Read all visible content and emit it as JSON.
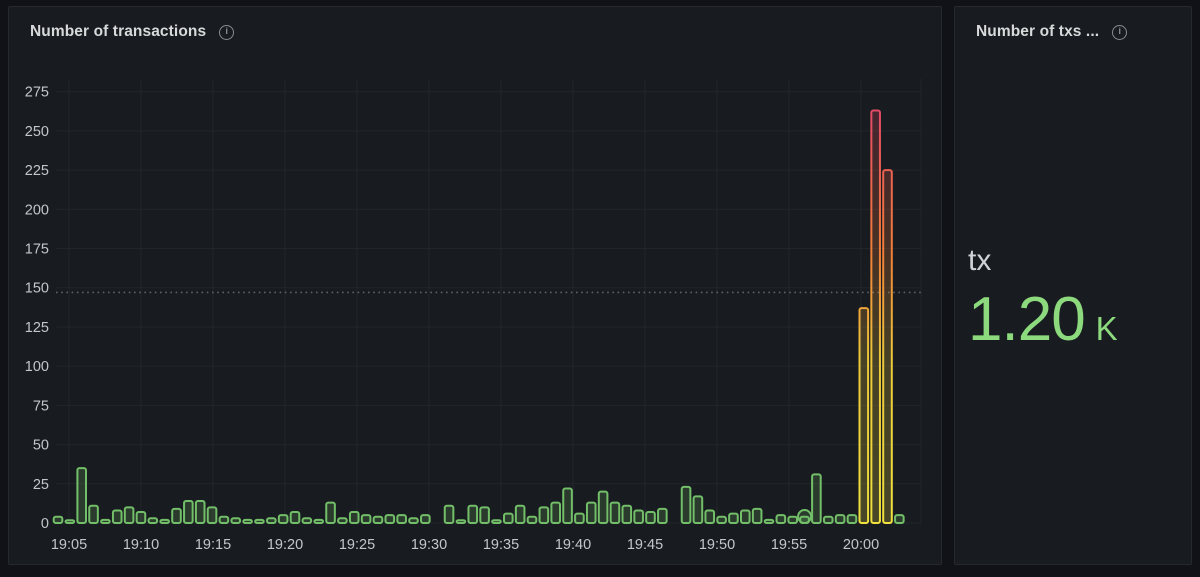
{
  "colors": {
    "page_bg": "#111217",
    "panel_bg": "#181b1f",
    "panel_border": "#25282e",
    "title_text": "#d8d9da",
    "axis_text": "#c3c6cb",
    "grid": "#22252b",
    "threshold_line": "#5d626b",
    "bar_green": "#73bf69",
    "bar_green_fill": "rgba(115,191,105,0.20)",
    "gradient_yellow": "#f0e13e",
    "gradient_orange": "#f08038",
    "gradient_red": "#e1456e",
    "stat_green": "#8cd97e"
  },
  "left_panel": {
    "title": "Number of transactions"
  },
  "right_panel": {
    "title": "Number of txs ...",
    "stat_label": "tx",
    "stat_value": "1.20",
    "stat_unit": "K"
  },
  "chart_data": {
    "type": "bar",
    "title": "Number of transactions",
    "xlabel": "",
    "ylabel": "",
    "x_tick_labels": [
      "19:05",
      "19:10",
      "19:15",
      "19:20",
      "19:25",
      "19:30",
      "19:35",
      "19:40",
      "19:45",
      "19:50",
      "19:55",
      "20:00"
    ],
    "y_ticks": [
      0,
      25,
      50,
      75,
      100,
      125,
      150,
      175,
      200,
      225,
      250,
      275
    ],
    "ylim": [
      0,
      285
    ],
    "grid": true,
    "bar_interval": "1 minute",
    "values": [
      4,
      1,
      35,
      11,
      2,
      8,
      10,
      7,
      3,
      2,
      9,
      14,
      14,
      10,
      4,
      3,
      2,
      2,
      3,
      5,
      7,
      3,
      2,
      13,
      3,
      7,
      5,
      4,
      5,
      5,
      3,
      5,
      0,
      11,
      1,
      11,
      10,
      1,
      6,
      11,
      4,
      10,
      13,
      22,
      6,
      13,
      20,
      13,
      11,
      8,
      7,
      9,
      0,
      23,
      17,
      8,
      4,
      6,
      8,
      9,
      2,
      5,
      4,
      4,
      31,
      4,
      5,
      5,
      137,
      263,
      225,
      5
    ],
    "highlight_point_index": 63,
    "threshold_value": 147,
    "gradient_color_min_value": 40
  }
}
